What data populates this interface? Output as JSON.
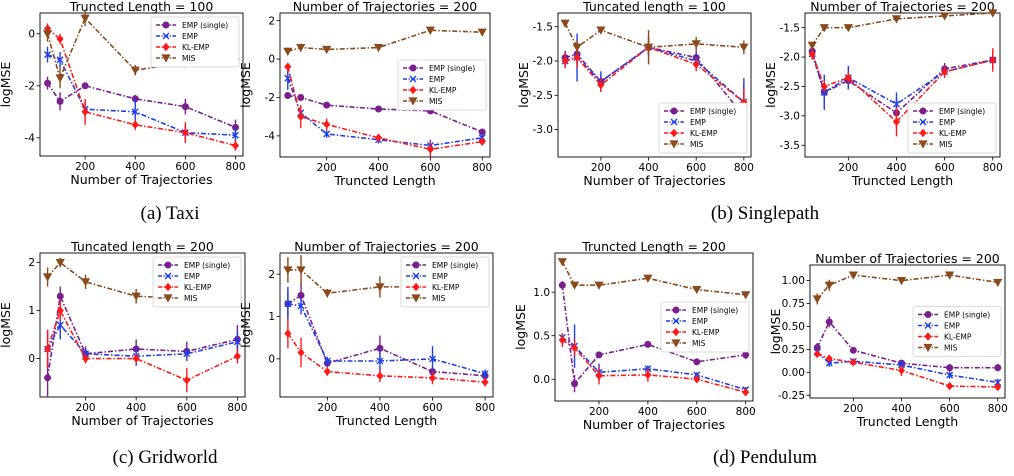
{
  "captions": [
    "(a)  Taxi",
    "(b)  Singlepath",
    "(c)  Gridworld",
    "(d)  Pendulum"
  ],
  "colors": {
    "EMP (single)": "#7b1f8c",
    "EMP": "#1f3fe8",
    "KL-EMP": "#ff1a1a",
    "MIS": "#8b4a1a"
  },
  "chart_data": [
    {
      "type": "line",
      "title": "Truncted Length = 100",
      "xlabel": "Number of Trajectories",
      "ylabel": "logMSE",
      "xlim": [
        20,
        830
      ],
      "ylim": [
        -4.7,
        0.8
      ],
      "xticks": [
        200,
        400,
        600,
        800
      ],
      "yticks": [
        -4,
        -2,
        0
      ],
      "legend": "top-right",
      "series": [
        {
          "name": "EMP (single)",
          "x": [
            50,
            100,
            200,
            400,
            600,
            800
          ],
          "y": [
            -1.9,
            -2.6,
            -2.0,
            -2.5,
            -2.8,
            -3.6
          ],
          "err": [
            0.25,
            0.35,
            0.1,
            0.15,
            0.3,
            0.3
          ]
        },
        {
          "name": "EMP",
          "x": [
            50,
            100,
            200,
            400,
            600,
            800
          ],
          "y": [
            -0.8,
            -1.0,
            -2.9,
            -3.0,
            -3.8,
            -3.9
          ],
          "err": [
            0.3,
            0.3,
            0.3,
            0.5,
            0.3,
            0.3
          ]
        },
        {
          "name": "KL-EMP",
          "x": [
            50,
            100,
            200,
            400,
            600,
            800
          ],
          "y": [
            0.2,
            -0.2,
            -3.0,
            -3.5,
            -3.8,
            -4.3
          ],
          "err": [
            0.2,
            0.2,
            0.5,
            0.2,
            0.4,
            0.2
          ]
        },
        {
          "name": "MIS",
          "x": [
            50,
            100,
            200,
            400,
            600,
            800
          ],
          "y": [
            0.0,
            -1.7,
            0.6,
            -1.4,
            -1.1,
            -1.1
          ],
          "err": [
            0.3,
            0.4,
            0.3,
            0.2,
            0.2,
            0.1
          ]
        }
      ]
    },
    {
      "type": "line",
      "title": "Number of Trajectories = 200",
      "xlabel": "Truncted Length",
      "ylabel": "logMSE",
      "xlim": [
        20,
        830
      ],
      "ylim": [
        -5.1,
        2.4
      ],
      "xticks": [
        200,
        400,
        600,
        800
      ],
      "yticks": [
        -4,
        -2,
        0,
        2
      ],
      "legend": "center-right",
      "series": [
        {
          "name": "EMP (single)",
          "x": [
            50,
            100,
            200,
            400,
            600,
            800
          ],
          "y": [
            -1.9,
            -2.0,
            -2.4,
            -2.6,
            -2.7,
            -3.8
          ],
          "err": [
            0.1,
            0.1,
            0.1,
            0.1,
            0.1,
            0.1
          ]
        },
        {
          "name": "EMP",
          "x": [
            50,
            100,
            200,
            400,
            600,
            800
          ],
          "y": [
            -1.0,
            -2.8,
            -3.9,
            -4.2,
            -4.5,
            -4.1
          ],
          "err": [
            0.6,
            0.3,
            0.2,
            0.2,
            0.3,
            0.2
          ]
        },
        {
          "name": "KL-EMP",
          "x": [
            50,
            100,
            200,
            400,
            600,
            800
          ],
          "y": [
            -0.4,
            -3.0,
            -3.4,
            -4.1,
            -4.7,
            -4.3
          ],
          "err": [
            0.2,
            0.6,
            0.3,
            0.2,
            0.4,
            0.2
          ]
        },
        {
          "name": "MIS",
          "x": [
            50,
            100,
            200,
            400,
            600,
            800
          ],
          "y": [
            0.4,
            0.6,
            0.5,
            0.6,
            1.5,
            1.4
          ],
          "err": [
            0.2,
            0.2,
            0.1,
            0.1,
            0.2,
            0.1
          ]
        }
      ]
    },
    {
      "type": "line",
      "title": "Tuncated length = 100",
      "xlabel": "Number of Trajectories",
      "ylabel": "logMSE",
      "xlim": [
        20,
        830
      ],
      "ylim": [
        -3.4,
        -1.3
      ],
      "xticks": [
        200,
        400,
        600,
        800
      ],
      "yticks": [
        -3.0,
        -2.5,
        -2.0,
        -1.5
      ],
      "legend": "bottom-right",
      "series": [
        {
          "name": "EMP (single)",
          "x": [
            50,
            100,
            200,
            400,
            600,
            800
          ],
          "y": [
            -1.95,
            -1.9,
            -2.3,
            -1.8,
            -1.95,
            -2.8
          ],
          "err": [
            0.1,
            0.15,
            0.1,
            0.1,
            0.1,
            0.45
          ]
        },
        {
          "name": "EMP",
          "x": [
            50,
            100,
            200,
            400,
            600,
            800
          ],
          "y": [
            -2.0,
            -1.95,
            -2.3,
            -1.8,
            -2.0,
            -2.6
          ],
          "err": [
            0.1,
            0.35,
            0.15,
            0.15,
            0.1,
            0.35
          ]
        },
        {
          "name": "KL-EMP",
          "x": [
            50,
            100,
            200,
            400,
            600,
            800
          ],
          "y": [
            -2.0,
            -1.95,
            -2.35,
            -1.8,
            -2.05,
            -2.6
          ],
          "err": [
            0.1,
            0.15,
            0.1,
            0.1,
            0.1,
            0.2
          ]
        },
        {
          "name": "MIS",
          "x": [
            50,
            100,
            200,
            400,
            600,
            800
          ],
          "y": [
            -1.45,
            -1.8,
            -1.55,
            -1.8,
            -1.75,
            -1.8
          ],
          "err": [
            0.05,
            0.1,
            0.05,
            0.25,
            0.1,
            0.1
          ]
        }
      ]
    },
    {
      "type": "line",
      "title": "Number of Trajectories = 200",
      "xlabel": "Truncted Length",
      "ylabel": "logMSE",
      "xlim": [
        20,
        830
      ],
      "ylim": [
        -3.7,
        -1.25
      ],
      "xticks": [
        200,
        400,
        600,
        800
      ],
      "yticks": [
        -3.5,
        -3.0,
        -2.5,
        -2.0,
        -1.5
      ],
      "legend": "bottom-right",
      "series": [
        {
          "name": "EMP (single)",
          "x": [
            50,
            100,
            200,
            400,
            600,
            800
          ],
          "y": [
            -1.9,
            -2.6,
            -2.4,
            -2.95,
            -2.2,
            -2.05
          ],
          "err": [
            0.05,
            0.2,
            0.15,
            0.25,
            0.1,
            0.15
          ]
        },
        {
          "name": "EMP",
          "x": [
            50,
            100,
            200,
            400,
            600,
            800
          ],
          "y": [
            -1.95,
            -2.6,
            -2.35,
            -2.8,
            -2.25,
            -2.05
          ],
          "err": [
            0.05,
            0.3,
            0.2,
            0.2,
            0.1,
            0.15
          ]
        },
        {
          "name": "KL-EMP",
          "x": [
            50,
            100,
            200,
            400,
            600,
            800
          ],
          "y": [
            -1.95,
            -2.5,
            -2.35,
            -3.1,
            -2.25,
            -2.05
          ],
          "err": [
            0.1,
            0.1,
            0.1,
            0.25,
            0.1,
            0.2
          ]
        },
        {
          "name": "MIS",
          "x": [
            50,
            100,
            200,
            400,
            600,
            800
          ],
          "y": [
            -1.8,
            -1.5,
            -1.5,
            -1.35,
            -1.3,
            -1.25
          ],
          "err": [
            0.05,
            0.05,
            0.05,
            0.05,
            0.05,
            0.05
          ]
        }
      ]
    },
    {
      "type": "line",
      "title": "Tuncated length = 200",
      "xlabel": "Number of Trajectories",
      "ylabel": "logMSE",
      "xlim": [
        20,
        830
      ],
      "ylim": [
        -0.8,
        2.2
      ],
      "xticks": [
        200,
        400,
        600,
        800
      ],
      "yticks": [
        0,
        1,
        2
      ],
      "legend": "top-right",
      "series": [
        {
          "name": "EMP (single)",
          "x": [
            50,
            100,
            200,
            400,
            600,
            800
          ],
          "y": [
            -0.4,
            1.3,
            0.1,
            0.2,
            0.15,
            0.4
          ],
          "err": [
            0.4,
            0.2,
            0.15,
            0.2,
            0.2,
            0.3
          ]
        },
        {
          "name": "EMP",
          "x": [
            50,
            100,
            200,
            400,
            600,
            800
          ],
          "y": [
            0.2,
            0.7,
            0.1,
            0.05,
            0.1,
            0.35
          ],
          "err": [
            0.4,
            0.3,
            0.1,
            0.2,
            0.1,
            0.2
          ]
        },
        {
          "name": "KL-EMP",
          "x": [
            50,
            100,
            200,
            400,
            600,
            800
          ],
          "y": [
            0.2,
            1.0,
            0.0,
            0.0,
            -0.45,
            0.05
          ],
          "err": [
            0.4,
            0.2,
            0.1,
            0.1,
            0.25,
            0.15
          ]
        },
        {
          "name": "MIS",
          "x": [
            50,
            100,
            200,
            400,
            600,
            800
          ],
          "y": [
            1.7,
            2.0,
            1.6,
            1.3,
            1.25,
            1.2
          ],
          "err": [
            0.2,
            0.1,
            0.15,
            0.15,
            0.1,
            0.05
          ]
        }
      ]
    },
    {
      "type": "line",
      "title": "Number of Trajectories = 200",
      "xlabel": "Truncted Length",
      "ylabel": "logMSE",
      "xlim": [
        20,
        830
      ],
      "ylim": [
        -0.9,
        2.5
      ],
      "xticks": [
        200,
        400,
        600,
        800
      ],
      "yticks": [
        0,
        1,
        2
      ],
      "legend": "top-right",
      "series": [
        {
          "name": "EMP (single)",
          "x": [
            50,
            100,
            200,
            400,
            600,
            800
          ],
          "y": [
            1.3,
            1.5,
            -0.1,
            0.25,
            -0.3,
            -0.4
          ],
          "err": [
            0.3,
            0.3,
            0.1,
            0.3,
            0.1,
            0.1
          ]
        },
        {
          "name": "EMP",
          "x": [
            50,
            100,
            200,
            400,
            600,
            800
          ],
          "y": [
            1.3,
            1.25,
            -0.05,
            -0.05,
            0.0,
            -0.35
          ],
          "err": [
            0.4,
            0.2,
            0.1,
            0.3,
            0.3,
            0.1
          ]
        },
        {
          "name": "KL-EMP",
          "x": [
            50,
            100,
            200,
            400,
            600,
            800
          ],
          "y": [
            0.6,
            0.15,
            -0.3,
            -0.4,
            -0.45,
            -0.55
          ],
          "err": [
            0.35,
            0.35,
            0.1,
            0.15,
            0.15,
            0.1
          ]
        },
        {
          "name": "MIS",
          "x": [
            50,
            100,
            200,
            400,
            600,
            800
          ],
          "y": [
            2.1,
            2.1,
            1.55,
            1.7,
            1.7,
            1.8
          ],
          "err": [
            0.3,
            0.35,
            0.1,
            0.25,
            0.2,
            0.05
          ]
        }
      ]
    },
    {
      "type": "line",
      "title": "Truncted Length = 200",
      "xlabel": "Number of Trajectories",
      "ylabel": "logMSE",
      "xlim": [
        20,
        830
      ],
      "ylim": [
        -0.25,
        1.45
      ],
      "xticks": [
        200,
        400,
        600,
        800
      ],
      "yticks": [
        0.0,
        0.5,
        1.0
      ],
      "legend": "center-right",
      "series": [
        {
          "name": "EMP (single)",
          "x": [
            50,
            100,
            200,
            400,
            600,
            800
          ],
          "y": [
            1.08,
            -0.05,
            0.28,
            0.4,
            0.2,
            0.28
          ],
          "err": [
            0.05,
            0.1,
            0.03,
            0.03,
            0.04,
            0.05
          ]
        },
        {
          "name": "EMP",
          "x": [
            50,
            100,
            200,
            400,
            600,
            800
          ],
          "y": [
            0.48,
            0.38,
            0.08,
            0.12,
            0.05,
            -0.12
          ],
          "err": [
            0.04,
            0.25,
            0.1,
            0.04,
            0.03,
            0.03
          ]
        },
        {
          "name": "KL-EMP",
          "x": [
            50,
            100,
            200,
            400,
            600,
            800
          ],
          "y": [
            0.45,
            0.36,
            0.04,
            0.05,
            0.0,
            -0.15
          ],
          "err": [
            0.08,
            0.1,
            0.1,
            0.08,
            0.04,
            0.03
          ]
        },
        {
          "name": "MIS",
          "x": [
            50,
            100,
            200,
            400,
            600,
            800
          ],
          "y": [
            1.35,
            1.08,
            1.08,
            1.16,
            1.03,
            0.97
          ],
          "err": [
            0.03,
            0.03,
            0.03,
            0.03,
            0.03,
            0.03
          ]
        }
      ]
    },
    {
      "type": "line",
      "title": "Number of Trajectories = 200",
      "xlabel": "Truncted Length",
      "ylabel": "logMSE",
      "xlim": [
        20,
        830
      ],
      "ylim": [
        -0.28,
        1.17
      ],
      "xticks": [
        200,
        400,
        600,
        800
      ],
      "yticks": [
        -0.25,
        0.0,
        0.25,
        0.5,
        0.75,
        1.0
      ],
      "legend": "center-right",
      "series": [
        {
          "name": "EMP (single)",
          "x": [
            50,
            100,
            200,
            400,
            600,
            800
          ],
          "y": [
            0.27,
            0.55,
            0.24,
            0.1,
            0.05,
            0.05
          ],
          "err": [
            0.05,
            0.06,
            0.03,
            0.03,
            0.04,
            0.04
          ]
        },
        {
          "name": "EMP",
          "x": [
            50,
            100,
            200,
            400,
            600,
            800
          ],
          "y": [
            0.22,
            0.1,
            0.12,
            0.08,
            -0.03,
            -0.11
          ],
          "err": [
            0.04,
            0.04,
            0.02,
            0.05,
            0.04,
            0.04
          ]
        },
        {
          "name": "KL-EMP",
          "x": [
            50,
            100,
            200,
            400,
            600,
            800
          ],
          "y": [
            0.2,
            0.15,
            0.11,
            0.02,
            -0.15,
            -0.16
          ],
          "err": [
            0.03,
            0.03,
            0.02,
            0.06,
            0.03,
            0.03
          ]
        },
        {
          "name": "MIS",
          "x": [
            50,
            100,
            200,
            400,
            600,
            800
          ],
          "y": [
            0.8,
            0.95,
            1.06,
            1.0,
            1.06,
            0.98
          ],
          "err": [
            0.06,
            0.06,
            0.02,
            0.02,
            0.04,
            0.02
          ]
        }
      ]
    }
  ]
}
